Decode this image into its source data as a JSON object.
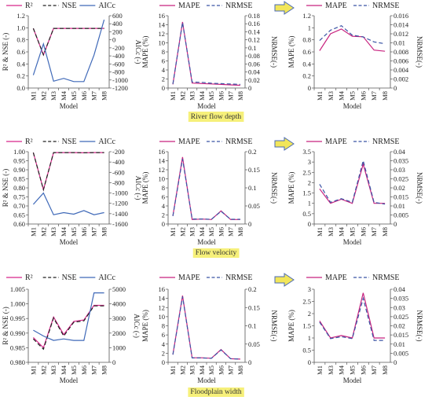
{
  "colors": {
    "r2": "#d6268a",
    "nse": "#222222",
    "aicc": "#3f69b8",
    "mape": "#c8237f",
    "nrmse": "#3b55a5",
    "label_bg": "#f6f07a",
    "arrow_fill": "#f2e65a",
    "arrow_stroke": "#4a69b6"
  },
  "row_labels": [
    "River flow depth",
    "Flow velocity",
    "Floodplain width"
  ],
  "chart_data": [
    {
      "type": "line",
      "categories": [
        "M1",
        "M2",
        "M3",
        "M4",
        "M5",
        "M6",
        "M7",
        "M8"
      ],
      "xlabel": "Model",
      "ylabel": "R² & NSE (-)",
      "y2label": "AICc (-)",
      "ylim": [
        0,
        1.2
      ],
      "yticks": [
        "0.0",
        "0.2",
        "0.4",
        "0.6",
        "0.8",
        "1.0",
        "1.2"
      ],
      "y2lim": [
        -1200,
        600
      ],
      "y2ticks": [
        "-1200",
        "-1000",
        "-800",
        "-600",
        "-400",
        "-200",
        "0",
        "200",
        "400",
        "600"
      ],
      "legend": [
        "R²",
        "NSE",
        "AICc"
      ],
      "series": [
        {
          "key": "r2",
          "axis": "left",
          "values": [
            0.99,
            0.55,
            0.99,
            0.99,
            0.99,
            0.99,
            0.99,
            0.99
          ]
        },
        {
          "key": "nse",
          "axis": "left",
          "values": [
            0.99,
            0.55,
            0.99,
            0.99,
            0.99,
            0.99,
            0.99,
            0.99
          ]
        },
        {
          "key": "aicc",
          "axis": "right",
          "values": [
            -880,
            -100,
            -1030,
            -960,
            -1040,
            -1040,
            -380,
            500
          ]
        }
      ]
    },
    {
      "type": "line",
      "categories": [
        "M1",
        "M2",
        "M3",
        "M4",
        "M5",
        "M6",
        "M7",
        "M8"
      ],
      "xlabel": "Model",
      "ylabel": "MAPE (%)",
      "y2label": "NRMSE(-)",
      "ylim": [
        0,
        16
      ],
      "yticks": [
        "0",
        "2",
        "4",
        "6",
        "8",
        "10",
        "12",
        "14",
        "16"
      ],
      "y2lim": [
        0,
        0.18
      ],
      "y2ticks": [
        "0",
        "0.02",
        "0.04",
        "0.06",
        "0.08",
        "0.1",
        "0.12",
        "0.14",
        "0.16",
        "0.18"
      ],
      "legend": [
        "MAPE",
        "NRMSE"
      ],
      "series": [
        {
          "key": "mape",
          "axis": "left",
          "values": [
            0.8,
            14.6,
            1.1,
            1.0,
            0.9,
            0.8,
            0.7,
            0.6
          ]
        },
        {
          "key": "nrmse",
          "axis": "right",
          "values": [
            0.01,
            0.163,
            0.015,
            0.014,
            0.012,
            0.011,
            0.01,
            0.009
          ]
        }
      ]
    },
    {
      "type": "line",
      "categories": [
        "M1",
        "M3",
        "M4",
        "M5",
        "M6",
        "M7",
        "M8"
      ],
      "xlabel": "Model",
      "ylabel": "MAPE (%)",
      "y2label": "NRMSE(-)",
      "ylim": [
        0,
        1.2
      ],
      "yticks": [
        "0",
        "0.2",
        "0.4",
        "0.6",
        "0.8",
        "1",
        "1.2"
      ],
      "y2lim": [
        0,
        0.016
      ],
      "y2ticks": [
        "0",
        "0.002",
        "0.004",
        "0.006",
        "0.008",
        "0.01",
        "0.012",
        "0.014",
        "0.016"
      ],
      "legend": [
        "MAPE",
        "NRMSE"
      ],
      "series": [
        {
          "key": "mape",
          "axis": "left",
          "values": [
            0.62,
            0.9,
            0.98,
            0.86,
            0.85,
            0.63,
            0.61
          ]
        },
        {
          "key": "nrmse",
          "axis": "right",
          "values": [
            0.0105,
            0.0128,
            0.0138,
            0.0117,
            0.0113,
            0.0102,
            0.0098
          ]
        }
      ]
    },
    {
      "type": "line",
      "categories": [
        "M1",
        "M2",
        "M3",
        "M4",
        "M5",
        "M6",
        "M7",
        "M8"
      ],
      "xlabel": "Model",
      "ylabel": "R² & NSE (-)",
      "y2label": "AICc (-)",
      "ylim": [
        0.6,
        1.0
      ],
      "yticks": [
        "0.60",
        "0.65",
        "0.70",
        "0.75",
        "0.80",
        "0.85",
        "0.90",
        "0.95",
        "1.00"
      ],
      "y2lim": [
        -1600,
        -200
      ],
      "y2ticks": [
        "-1600",
        "-1400",
        "-1200",
        "-1000",
        "-800",
        "-600",
        "-400",
        "-200"
      ],
      "legend": [
        "R²",
        "NSE",
        "AICc"
      ],
      "series": [
        {
          "key": "r2",
          "axis": "left",
          "values": [
            0.995,
            0.79,
            0.995,
            0.995,
            0.995,
            0.994,
            0.995,
            0.995
          ]
        },
        {
          "key": "nse",
          "axis": "left",
          "values": [
            0.995,
            0.79,
            0.995,
            0.995,
            0.995,
            0.994,
            0.995,
            0.995
          ]
        },
        {
          "key": "aicc",
          "axis": "right",
          "values": [
            -1220,
            -1000,
            -1420,
            -1380,
            -1410,
            -1340,
            -1420,
            -1380
          ]
        }
      ]
    },
    {
      "type": "line",
      "categories": [
        "M1",
        "M2",
        "M3",
        "M4",
        "M5",
        "M6",
        "M7",
        "M8"
      ],
      "xlabel": "Model",
      "ylabel": "MAPE (%)",
      "y2label": "NRMSE(-)",
      "ylim": [
        0,
        16
      ],
      "yticks": [
        "0",
        "2",
        "4",
        "6",
        "8",
        "10",
        "12",
        "14",
        "16"
      ],
      "y2lim": [
        0,
        0.2
      ],
      "y2ticks": [
        "0",
        "0.05",
        "0.1",
        "0.15",
        "0.2"
      ],
      "legend": [
        "MAPE",
        "NRMSE"
      ],
      "series": [
        {
          "key": "mape",
          "axis": "left",
          "values": [
            1.8,
            14.8,
            1.0,
            1.1,
            1.0,
            2.9,
            1.0,
            1.0
          ]
        },
        {
          "key": "nrmse",
          "axis": "right",
          "values": [
            0.022,
            0.18,
            0.014,
            0.014,
            0.013,
            0.035,
            0.013,
            0.013
          ]
        }
      ]
    },
    {
      "type": "line",
      "categories": [
        "M1",
        "M3",
        "M4",
        "M5",
        "M6",
        "M7",
        "M8"
      ],
      "xlabel": "Model",
      "ylabel": "MAPE (%)",
      "y2label": "NRMSE(-)",
      "ylim": [
        0,
        3.5
      ],
      "yticks": [
        "0",
        "0.5",
        "1",
        "1.5",
        "2",
        "2.5",
        "3",
        "3.5"
      ],
      "y2lim": [
        0,
        0.04
      ],
      "y2ticks": [
        "0",
        "0.005",
        "0.01",
        "0.015",
        "0.02",
        "0.025",
        "0.03",
        "0.035",
        "0.04"
      ],
      "legend": [
        "MAPE",
        "NRMSE"
      ],
      "series": [
        {
          "key": "mape",
          "axis": "left",
          "values": [
            1.7,
            1.0,
            1.2,
            1.0,
            2.9,
            1.0,
            1.0
          ]
        },
        {
          "key": "nrmse",
          "axis": "right",
          "values": [
            0.022,
            0.012,
            0.014,
            0.012,
            0.035,
            0.012,
            0.011
          ]
        }
      ]
    },
    {
      "type": "line",
      "categories": [
        "M1",
        "M2",
        "M3",
        "M4",
        "M5",
        "M6",
        "M7",
        "M8"
      ],
      "xlabel": "Model",
      "ylabel": "R² & NSE (-)",
      "y2label": "AICc (-)",
      "ylim": [
        0.98,
        1.005
      ],
      "yticks": [
        "0.980",
        "0.985",
        "0.990",
        "0.995",
        "1.000",
        "1.005"
      ],
      "y2lim": [
        0,
        5000
      ],
      "y2ticks": [
        "0",
        "1000",
        "2000",
        "3000",
        "4000",
        "5000"
      ],
      "legend": [
        "R²",
        "NSE",
        "AICc"
      ],
      "series": [
        {
          "key": "r2",
          "axis": "left",
          "values": [
            0.9885,
            0.985,
            0.9955,
            0.9895,
            0.994,
            0.9945,
            0.9995,
            0.9995
          ]
        },
        {
          "key": "nse",
          "axis": "left",
          "values": [
            0.988,
            0.9845,
            0.9952,
            0.989,
            0.9937,
            0.9942,
            0.9993,
            0.9993
          ]
        },
        {
          "key": "aicc",
          "axis": "right",
          "values": [
            2200,
            1800,
            1500,
            1600,
            1500,
            1500,
            4750,
            4750
          ]
        }
      ]
    },
    {
      "type": "line",
      "categories": [
        "M1",
        "M2",
        "M3",
        "M4",
        "M5",
        "M6",
        "M7",
        "M8"
      ],
      "xlabel": "Model",
      "ylabel": "MAPE (%)",
      "y2label": "NRMSE(-)",
      "ylim": [
        0,
        16
      ],
      "yticks": [
        "0",
        "2",
        "4",
        "6",
        "8",
        "10",
        "12",
        "14",
        "16"
      ],
      "y2lim": [
        0,
        0.2
      ],
      "y2ticks": [
        "0",
        "0.05",
        "0.1",
        "0.15",
        "0.2"
      ],
      "legend": [
        "MAPE",
        "NRMSE"
      ],
      "series": [
        {
          "key": "mape",
          "axis": "left",
          "values": [
            1.7,
            14.6,
            1.0,
            1.0,
            0.9,
            2.8,
            0.8,
            0.7
          ]
        },
        {
          "key": "nrmse",
          "axis": "right",
          "values": [
            0.021,
            0.18,
            0.012,
            0.012,
            0.011,
            0.034,
            0.01,
            0.009
          ]
        }
      ]
    },
    {
      "type": "line",
      "categories": [
        "M1",
        "M3",
        "M4",
        "M5",
        "M6",
        "M7",
        "M8"
      ],
      "xlabel": "Model",
      "ylabel": "MAPE (%)",
      "y2label": "NRMSE(-)",
      "ylim": [
        0,
        3
      ],
      "yticks": [
        "0",
        "0.5",
        "1",
        "1.5",
        "2",
        "2.5",
        "3"
      ],
      "y2lim": [
        0,
        0.04
      ],
      "y2ticks": [
        "0",
        "0.005",
        "0.01",
        "0.015",
        "0.02",
        "0.025",
        "0.03",
        "0.035",
        "0.04"
      ],
      "legend": [
        "MAPE",
        "NRMSE"
      ],
      "series": [
        {
          "key": "mape",
          "axis": "left",
          "values": [
            1.7,
            1.0,
            1.1,
            1.0,
            2.85,
            1.0,
            1.0
          ]
        },
        {
          "key": "nrmse",
          "axis": "right",
          "values": [
            0.022,
            0.013,
            0.014,
            0.013,
            0.035,
            0.012,
            0.012
          ]
        }
      ]
    }
  ]
}
